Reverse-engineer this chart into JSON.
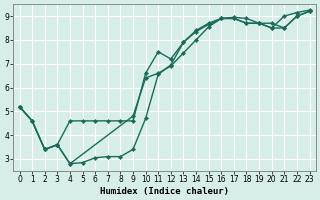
{
  "xlabel": "Humidex (Indice chaleur)",
  "bg_color": "#d7eee8",
  "grid_color": "#ffffff",
  "line_color": "#1a6b5a",
  "xlim": [
    -0.5,
    23.5
  ],
  "ylim": [
    2.5,
    9.5
  ],
  "xticks": [
    0,
    1,
    2,
    3,
    4,
    5,
    6,
    7,
    8,
    9,
    10,
    11,
    12,
    13,
    14,
    15,
    16,
    17,
    18,
    19,
    20,
    21,
    22,
    23
  ],
  "yticks": [
    3,
    4,
    5,
    6,
    7,
    8,
    9
  ],
  "line1_x": [
    0,
    1,
    2,
    3,
    4,
    5,
    6,
    7,
    8,
    9,
    10,
    11,
    12,
    13,
    14,
    15,
    16,
    17,
    18,
    19,
    20,
    21,
    22,
    23
  ],
  "line1_y": [
    5.2,
    4.6,
    3.4,
    3.6,
    4.6,
    4.6,
    4.6,
    4.6,
    4.6,
    4.6,
    6.6,
    7.5,
    7.2,
    7.9,
    8.4,
    8.7,
    8.9,
    8.9,
    8.7,
    8.7,
    8.5,
    9.0,
    9.15,
    9.25
  ],
  "line2_x": [
    0,
    1,
    2,
    3,
    4,
    5,
    6,
    7,
    8,
    9,
    10,
    11,
    12,
    13,
    14,
    15,
    16,
    17,
    18,
    19,
    20,
    21,
    22,
    23
  ],
  "line2_y": [
    5.2,
    4.6,
    3.4,
    3.6,
    2.8,
    2.85,
    3.05,
    3.1,
    3.1,
    3.4,
    4.7,
    6.55,
    6.95,
    7.9,
    8.35,
    8.65,
    8.9,
    8.9,
    8.7,
    8.7,
    8.5,
    8.5,
    9.0,
    9.2
  ],
  "line3_x": [
    0,
    1,
    2,
    3,
    4,
    9,
    10,
    11,
    12,
    13,
    14,
    15,
    16,
    17,
    18,
    19,
    20,
    21,
    22,
    23
  ],
  "line3_y": [
    5.2,
    4.6,
    3.4,
    3.6,
    2.8,
    4.8,
    6.4,
    6.6,
    6.9,
    7.45,
    8.0,
    8.55,
    8.9,
    8.95,
    8.9,
    8.7,
    8.7,
    8.5,
    9.0,
    9.2
  ]
}
